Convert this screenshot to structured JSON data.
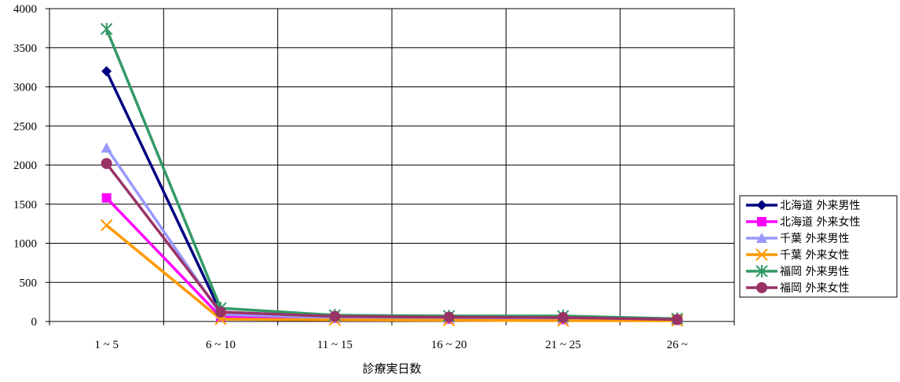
{
  "chart_data": {
    "type": "line",
    "title": "",
    "xlabel": "診療実日数",
    "ylabel": "",
    "ylim": [
      0,
      4000
    ],
    "yticks": [
      0,
      500,
      1000,
      1500,
      2000,
      2500,
      3000,
      3500,
      4000
    ],
    "grid": true,
    "legend_position": "right",
    "categories": [
      "1 ~ 5",
      "6 ~ 10",
      "11 ~ 15",
      "16 ~ 20",
      "21 ~ 25",
      "26 ~"
    ],
    "series": [
      {
        "name": "北海道 外来男性",
        "color": "#000080",
        "marker": "diamond",
        "values": [
          3200,
          120,
          55,
          50,
          45,
          20
        ]
      },
      {
        "name": "北海道 外来女性",
        "color": "#ff00ff",
        "marker": "square",
        "values": [
          1580,
          60,
          40,
          30,
          25,
          15
        ]
      },
      {
        "name": "千葉 外来男性",
        "color": "#9999ff",
        "marker": "triangle",
        "values": [
          2220,
          90,
          45,
          40,
          35,
          20
        ]
      },
      {
        "name": "千葉 外来女性",
        "color": "#ff9900",
        "marker": "x",
        "values": [
          1230,
          30,
          20,
          15,
          10,
          10
        ]
      },
      {
        "name": "福岡 外来男性",
        "color": "#339966",
        "marker": "star",
        "values": [
          3740,
          170,
          80,
          70,
          70,
          35
        ]
      },
      {
        "name": "福岡 外来女性",
        "color": "#993366",
        "marker": "circle",
        "values": [
          2020,
          120,
          65,
          55,
          50,
          25
        ]
      }
    ]
  }
}
